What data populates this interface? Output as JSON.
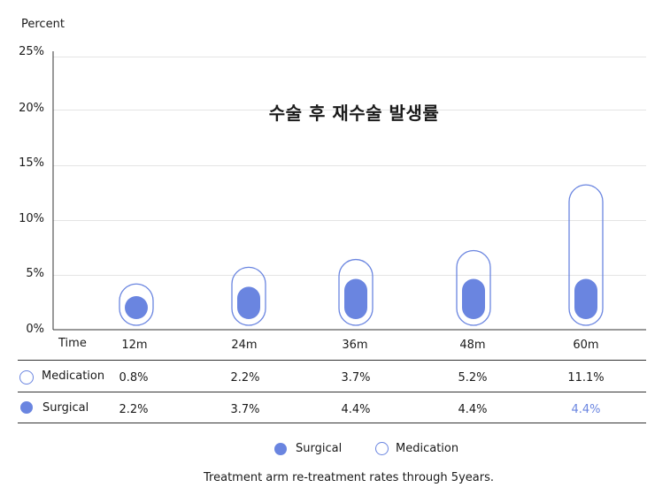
{
  "chart_data": {
    "type": "bar",
    "title": "수술 후 재수술 발생률",
    "ylabel": "Percent",
    "xlabel": "Time",
    "ylim": [
      0,
      25
    ],
    "yticks": [
      "25%",
      "20%",
      "15%",
      "10%",
      "5%",
      "0%"
    ],
    "categories": [
      "12m",
      "24m",
      "36m",
      "48m",
      "60m"
    ],
    "series": [
      {
        "name": "Medication",
        "values": [
          0.8,
          2.2,
          3.7,
          5.2,
          11.1
        ],
        "labels": [
          "0.8%",
          "2.2%",
          "3.7%",
          "5.2%",
          "11.1%"
        ]
      },
      {
        "name": "Surgical",
        "values": [
          2.2,
          3.7,
          4.4,
          4.4,
          4.4
        ],
        "labels": [
          "2.2%",
          "3.7%",
          "4.4%",
          "4.4%",
          "4.4%"
        ]
      }
    ],
    "grid": true,
    "legend": "bottom",
    "caption": "Treatment arm re-treatment rates through 5years.",
    "colors": {
      "surgical": "#6a85e0",
      "medication_outline": "#6a85e0",
      "highlight_text": "#6a85e0"
    }
  }
}
